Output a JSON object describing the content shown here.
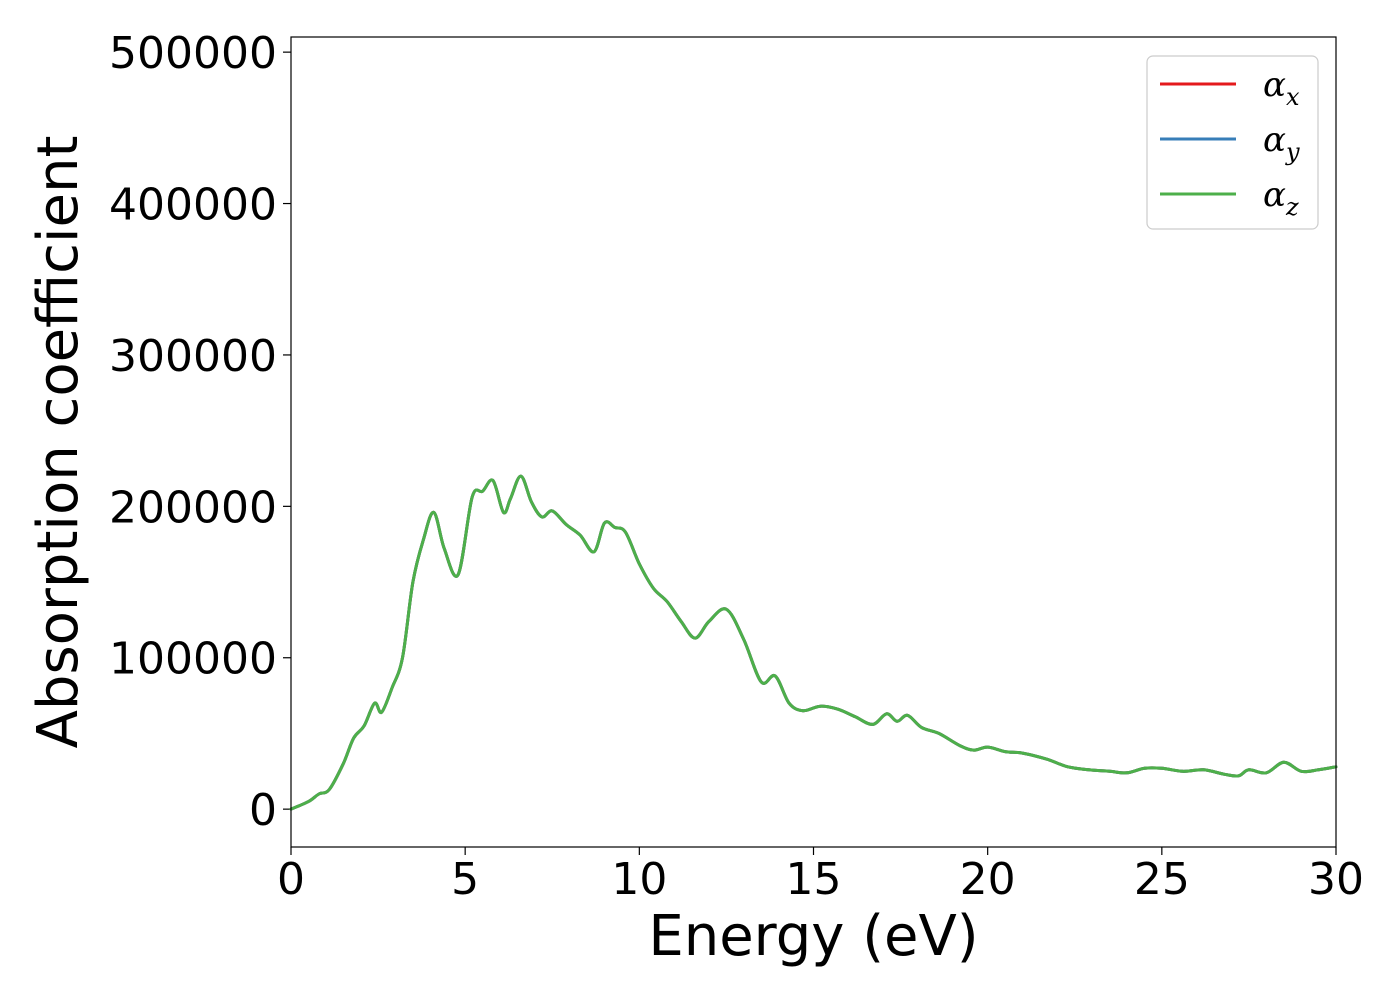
{
  "chart_data": {
    "type": "line",
    "title": "",
    "xlabel": "Energy (eV)",
    "ylabel": "Absorption coefficient",
    "xlim": [
      0,
      30
    ],
    "ylim": [
      -25000,
      510000
    ],
    "xticks": [
      "0",
      "5",
      "10",
      "15",
      "20",
      "25",
      "30"
    ],
    "yticks": [
      "0",
      "100000",
      "200000",
      "300000",
      "400000",
      "500000"
    ],
    "grid": false,
    "legend_position": "top-right",
    "legend": [
      {
        "base": "α",
        "sub": "x",
        "color": "#e41a1c"
      },
      {
        "base": "α",
        "sub": "y",
        "color": "#377eb8"
      },
      {
        "base": "α",
        "sub": "z",
        "color": "#4daf4a"
      }
    ],
    "series": [
      {
        "name": "αx",
        "color": "#e41a1c"
      },
      {
        "name": "αy",
        "color": "#377eb8"
      },
      {
        "name": "αz",
        "color": "#4daf4a"
      }
    ],
    "x": [
      0,
      0.5,
      0.8,
      1.1,
      1.5,
      1.8,
      2.1,
      2.4,
      2.6,
      2.9,
      3.2,
      3.5,
      3.8,
      4.1,
      4.4,
      4.8,
      5.2,
      5.5,
      5.8,
      6.1,
      6.3,
      6.6,
      6.9,
      7.2,
      7.5,
      7.9,
      8.3,
      8.7,
      9.0,
      9.3,
      9.6,
      10.0,
      10.4,
      10.8,
      11.2,
      11.6,
      12.0,
      12.5,
      13.0,
      13.5,
      13.9,
      14.3,
      14.7,
      15.2,
      15.7,
      16.2,
      16.7,
      17.1,
      17.4,
      17.7,
      18.1,
      18.6,
      19.2,
      19.6,
      20.0,
      20.5,
      21.0,
      21.7,
      22.3,
      22.9,
      23.5,
      24.0,
      24.5,
      25.0,
      25.6,
      26.2,
      26.8,
      27.2,
      27.5,
      28.0,
      28.5,
      29.0,
      29.5,
      30.0
    ],
    "y": [
      0,
      5000,
      10000,
      13000,
      30000,
      47000,
      55000,
      70000,
      64000,
      80000,
      100000,
      150000,
      178000,
      196000,
      172000,
      155000,
      206000,
      210000,
      217000,
      196000,
      205000,
      220000,
      203000,
      193000,
      197000,
      188000,
      181000,
      170000,
      189000,
      186000,
      183000,
      162000,
      146000,
      137000,
      124000,
      113000,
      124000,
      132000,
      112000,
      84000,
      88000,
      70000,
      65000,
      68000,
      66000,
      61000,
      56000,
      63000,
      58000,
      62000,
      54000,
      50000,
      42000,
      39000,
      41000,
      38000,
      37000,
      33000,
      28000,
      26000,
      25000,
      24000,
      27000,
      27000,
      25000,
      26000,
      23000,
      22000,
      26000,
      24000,
      31000,
      25000,
      26000,
      28000
    ]
  }
}
